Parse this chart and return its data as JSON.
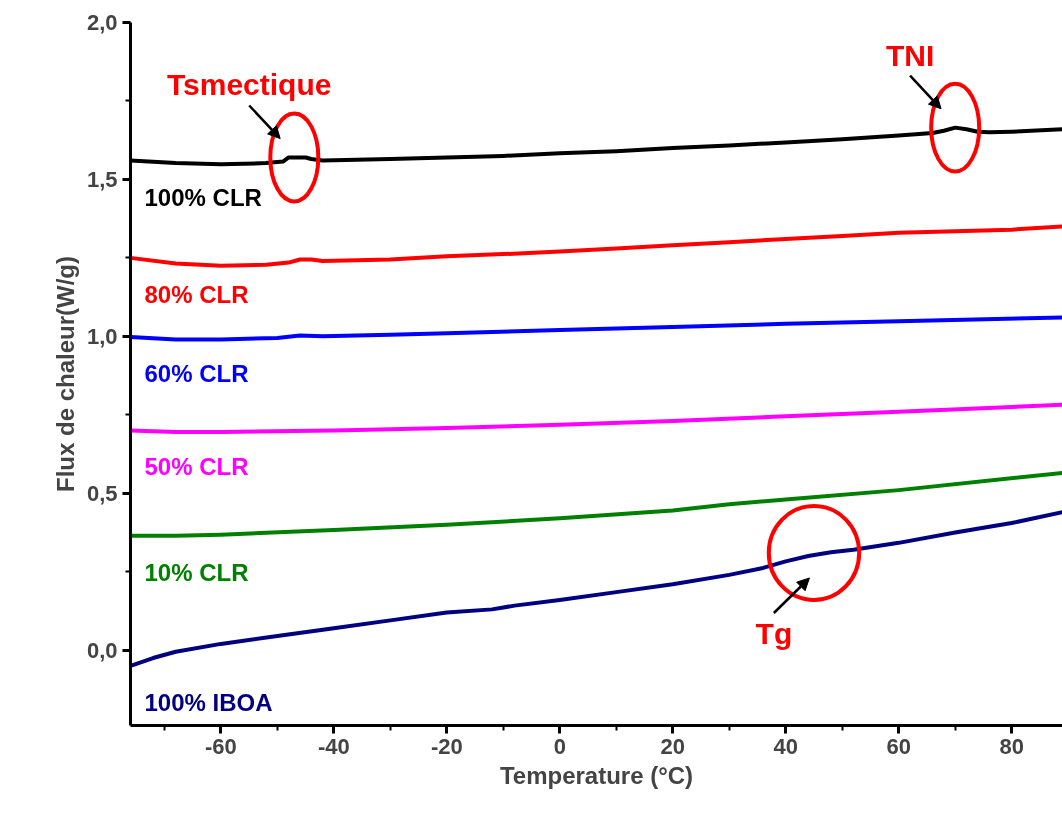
{
  "chart_data": {
    "type": "line",
    "xlabel": "Temperature (°C)",
    "ylabel": "Flux de chaleur(W/g)",
    "xlim": [
      -76,
      89
    ],
    "ylim": [
      -0.24,
      2.0
    ],
    "xticks": [
      -60,
      -40,
      -20,
      0,
      20,
      40,
      60,
      80
    ],
    "yticks": [
      {
        "value": 0,
        "label": "0,0"
      },
      {
        "value": 0.5,
        "label": "0,5"
      },
      {
        "value": 1.0,
        "label": "1,0"
      },
      {
        "value": 1.5,
        "label": "1,5"
      },
      {
        "value": 2.0,
        "label": "2,0"
      }
    ],
    "grid": false,
    "marker": "none",
    "line_style": "solid",
    "series": [
      {
        "name": "100% CLR",
        "color": "#000000",
        "x": [
          -76,
          -68,
          -60,
          -52,
          -49,
          -48,
          -45,
          -44,
          -42,
          -30,
          -20,
          -10,
          0,
          10,
          20,
          30,
          40,
          50,
          60,
          66,
          68,
          70,
          72,
          74,
          76,
          80,
          89
        ],
        "values": [
          1.56,
          1.552,
          1.548,
          1.552,
          1.557,
          1.57,
          1.57,
          1.565,
          1.56,
          1.565,
          1.57,
          1.575,
          1.583,
          1.59,
          1.6,
          1.608,
          1.618,
          1.628,
          1.64,
          1.648,
          1.655,
          1.665,
          1.66,
          1.652,
          1.65,
          1.652,
          1.66
        ]
      },
      {
        "name": "80% CLR",
        "color": "#ff0000",
        "x": [
          -76,
          -68,
          -60,
          -52,
          -48,
          -46,
          -44,
          -42,
          -30,
          -20,
          -10,
          0,
          10,
          20,
          30,
          40,
          50,
          60,
          70,
          80,
          89
        ],
        "values": [
          1.25,
          1.232,
          1.225,
          1.228,
          1.235,
          1.245,
          1.245,
          1.24,
          1.245,
          1.255,
          1.262,
          1.27,
          1.28,
          1.29,
          1.3,
          1.31,
          1.32,
          1.33,
          1.335,
          1.34,
          1.35
        ]
      },
      {
        "name": "60% CLR",
        "color": "#0000ff",
        "x": [
          -76,
          -68,
          -60,
          -50,
          -46,
          -42,
          -30,
          -20,
          0,
          20,
          40,
          60,
          89
        ],
        "values": [
          0.998,
          0.99,
          0.99,
          0.995,
          1.003,
          1.0,
          1.005,
          1.01,
          1.02,
          1.03,
          1.04,
          1.048,
          1.06
        ]
      },
      {
        "name": "50% CLR",
        "color": "#ff00ff",
        "x": [
          -76,
          -68,
          -60,
          -40,
          -20,
          0,
          20,
          40,
          60,
          89
        ],
        "values": [
          0.7,
          0.695,
          0.695,
          0.7,
          0.708,
          0.718,
          0.73,
          0.745,
          0.76,
          0.782
        ]
      },
      {
        "name": "10% CLR",
        "color": "#008000",
        "x": [
          -76,
          -68,
          -60,
          -40,
          -20,
          0,
          20,
          30,
          40,
          60,
          89
        ],
        "values": [
          0.365,
          0.365,
          0.368,
          0.383,
          0.4,
          0.42,
          0.445,
          0.465,
          0.48,
          0.51,
          0.565
        ]
      },
      {
        "name": "100% IBOA",
        "color": "#000080",
        "x": [
          -76,
          -72,
          -68,
          -60,
          -50,
          -40,
          -30,
          -20,
          -12,
          -8,
          0,
          10,
          20,
          30,
          36,
          40,
          44,
          48,
          52,
          60,
          70,
          80,
          89
        ],
        "values": [
          -0.05,
          -0.025,
          -0.005,
          0.02,
          0.045,
          0.07,
          0.095,
          0.12,
          0.13,
          0.142,
          0.16,
          0.185,
          0.21,
          0.24,
          0.262,
          0.283,
          0.3,
          0.312,
          0.32,
          0.342,
          0.375,
          0.405,
          0.44
        ]
      }
    ],
    "annotations": [
      {
        "text": "Tsmectique",
        "x": -47,
        "y": 1.57
      },
      {
        "text": "TNI",
        "x": 70,
        "y": 1.665
      },
      {
        "text": "Tg",
        "x": 45,
        "y": 0.31
      }
    ]
  }
}
